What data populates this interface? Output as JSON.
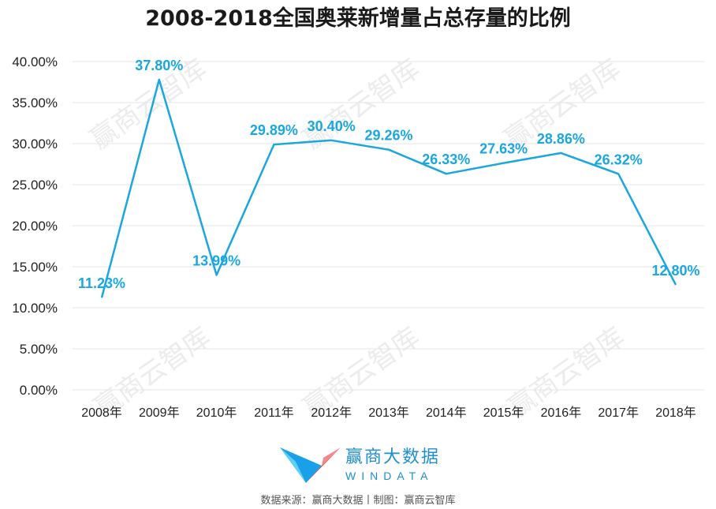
{
  "chart_data": {
    "type": "line",
    "title": "2008-2018全国奥莱新增量占总存量的比例",
    "categories": [
      "2008年",
      "2009年",
      "2010年",
      "2011年",
      "2012年",
      "2013年",
      "2014年",
      "2015年",
      "2016年",
      "2017年",
      "2018年"
    ],
    "series": [
      {
        "values": [
          11.23,
          37.8,
          13.99,
          29.89,
          30.4,
          29.26,
          26.33,
          27.63,
          28.86,
          26.32,
          12.8
        ],
        "labels": [
          "11.23%",
          "37.80%",
          "13.99%",
          "29.89%",
          "30.40%",
          "29.26%",
          "26.33%",
          "27.63%",
          "28.86%",
          "26.32%",
          "12.80%"
        ]
      }
    ],
    "y_ticks": [
      "0.00%",
      "5.00%",
      "10.00%",
      "15.00%",
      "20.00%",
      "25.00%",
      "30.00%",
      "35.00%",
      "40.00%"
    ],
    "ylim": [
      0,
      40
    ],
    "ytick_step": 5,
    "grid": true,
    "legend": "none",
    "colors": {
      "series": "#1aa7e0",
      "grid": "#e4e4e4"
    }
  },
  "watermark": "赢商云智库",
  "logo": {
    "name_cn": "赢商大数据",
    "name_en": "WINDATA"
  },
  "source_text": "数据来源：赢商大数据丨制图：赢商云智库"
}
